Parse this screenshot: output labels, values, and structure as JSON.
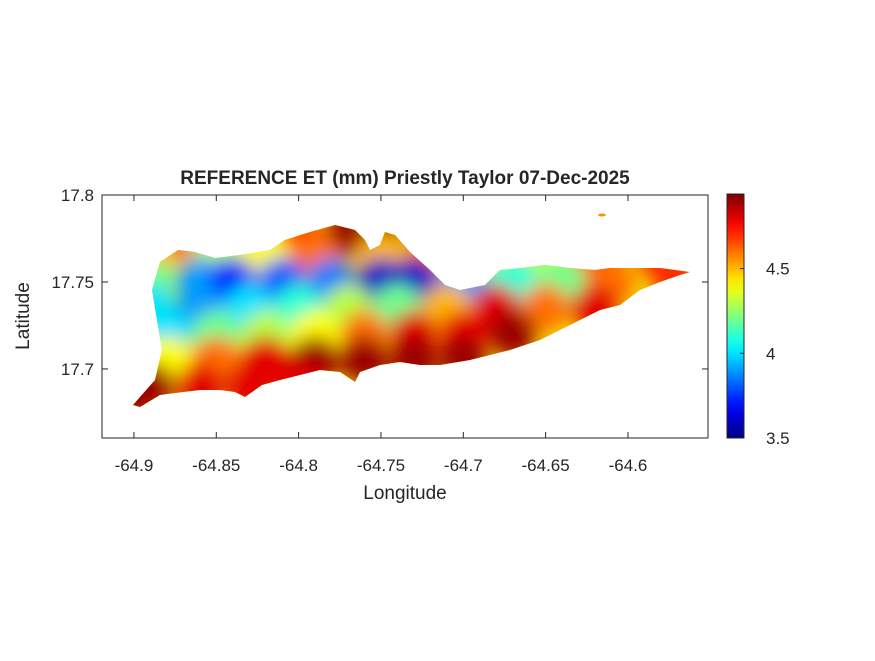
{
  "chart_data": {
    "type": "heatmap",
    "title": "REFERENCE ET (mm) Priestly Taylor 07-Dec-2025",
    "x_label": "Longitude",
    "y_label": "Latitude",
    "xlim": [
      -64.9194,
      -64.5514
    ],
    "ylim": [
      17.6603,
      17.8
    ],
    "xticks": [
      -64.9,
      -64.85,
      -64.8,
      -64.75,
      -64.7,
      -64.65,
      -64.6
    ],
    "yticks": [
      17.7,
      17.75,
      17.8
    ],
    "colormap": "jet",
    "clim": [
      3.5,
      4.94
    ],
    "cticks": [
      3.5,
      4,
      4.5
    ],
    "x": [
      -64.88,
      -64.86,
      -64.84,
      -64.8,
      -64.77,
      -64.75,
      -64.89,
      -64.85,
      -64.82,
      -64.79,
      -64.75,
      -64.72,
      -64.68,
      -64.65,
      -64.62,
      -64.58,
      -64.89,
      -64.86,
      -64.84,
      -64.81,
      -64.78,
      -64.75,
      -64.73,
      -64.7,
      -64.67,
      -64.64,
      -64.61,
      -64.57,
      -64.89,
      -64.86,
      -64.83,
      -64.8,
      -64.77,
      -64.74,
      -64.71,
      -64.68,
      -64.65,
      -64.62,
      -64.88,
      -64.85,
      -64.82,
      -64.79,
      -64.76,
      -64.73,
      -64.7,
      -64.67,
      -64.88,
      -64.85,
      -64.82,
      -64.79,
      -64.76,
      -64.73,
      -64.7,
      -64.89,
      -64.86,
      -64.83,
      -64.8,
      -64.9
    ],
    "y": [
      17.775,
      17.775,
      17.775,
      17.775,
      17.778,
      17.778,
      17.765,
      17.765,
      17.765,
      17.765,
      17.765,
      17.765,
      17.765,
      17.765,
      17.765,
      17.765,
      17.75,
      17.75,
      17.75,
      17.75,
      17.75,
      17.75,
      17.75,
      17.75,
      17.75,
      17.75,
      17.75,
      17.75,
      17.735,
      17.735,
      17.735,
      17.735,
      17.735,
      17.735,
      17.735,
      17.735,
      17.735,
      17.735,
      17.72,
      17.72,
      17.72,
      17.72,
      17.72,
      17.72,
      17.72,
      17.72,
      17.705,
      17.705,
      17.705,
      17.705,
      17.705,
      17.705,
      17.705,
      17.69,
      17.69,
      17.69,
      17.69,
      17.685
    ],
    "values": [
      4.7,
      4.6,
      4.4,
      4.7,
      4.9,
      4.9,
      4.5,
      4.3,
      4.4,
      4.6,
      4.5,
      4.6,
      4.3,
      4.3,
      4.7,
      4.7,
      4.2,
      3.9,
      3.7,
      3.8,
      3.85,
      3.6,
      3.6,
      3.9,
      4.1,
      4.2,
      4.6,
      4.7,
      4.0,
      3.9,
      4.0,
      4.1,
      4.3,
      4.2,
      4.5,
      4.8,
      4.6,
      4.8,
      4.0,
      4.2,
      4.3,
      4.4,
      4.6,
      4.8,
      4.8,
      4.9,
      4.4,
      4.6,
      4.8,
      4.9,
      4.9,
      4.9,
      4.9,
      4.9,
      4.8,
      4.8,
      4.8,
      4.9
    ]
  }
}
